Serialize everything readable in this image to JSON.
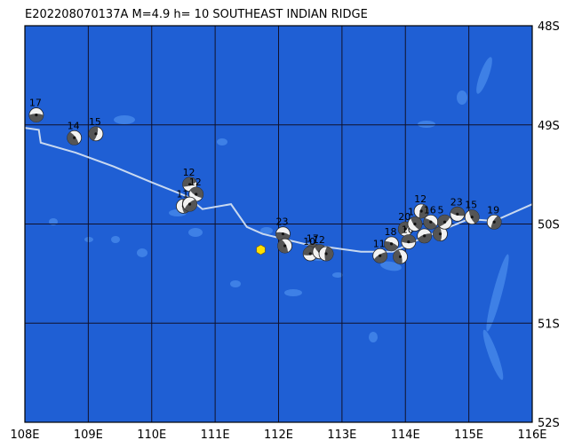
{
  "title": "E202208070137A  M=4.9  h= 10  SOUTHEAST INDIAN RIDGE",
  "colors": {
    "ocean": "#1f5fd4",
    "shallow": "#3e80e6",
    "ridge": "#c9d9f0",
    "grid": "#10102a",
    "epicenter": "#ffe000",
    "beachball_dark": "#555555",
    "beachball_light": "#f2f2f2"
  },
  "axes": {
    "lon_range": [
      108,
      116
    ],
    "lat_range": [
      -52,
      -48
    ],
    "lon_ticks": [
      "108E",
      "109E",
      "110E",
      "111E",
      "112E",
      "113E",
      "114E",
      "115E",
      "116E"
    ],
    "lat_ticks": [
      "48S",
      "49S",
      "50S",
      "51S",
      "52S"
    ]
  },
  "epicenter": {
    "lon": 111.72,
    "lat": -50.26,
    "icon": "hexagon-icon"
  },
  "events": [
    {
      "lon": 108.18,
      "lat": -48.9,
      "depth": "17"
    },
    {
      "lon": 108.78,
      "lat": -49.13,
      "depth": "14"
    },
    {
      "lon": 109.12,
      "lat": -49.09,
      "depth": "15"
    },
    {
      "lon": 110.6,
      "lat": -49.6,
      "depth": "12"
    },
    {
      "lon": 110.7,
      "lat": -49.7,
      "depth": "12"
    },
    {
      "lon": 110.5,
      "lat": -49.82,
      "depth": "11"
    },
    {
      "lon": 110.6,
      "lat": -49.8,
      "depth": ""
    },
    {
      "lon": 112.07,
      "lat": -50.1,
      "depth": "23"
    },
    {
      "lon": 112.1,
      "lat": -50.22,
      "depth": ""
    },
    {
      "lon": 112.55,
      "lat": -50.27,
      "depth": "17"
    },
    {
      "lon": 112.5,
      "lat": -50.3,
      "depth": "10"
    },
    {
      "lon": 112.65,
      "lat": -50.28,
      "depth": "12"
    },
    {
      "lon": 112.75,
      "lat": -50.3,
      "depth": ""
    },
    {
      "lon": 113.6,
      "lat": -50.32,
      "depth": "11"
    },
    {
      "lon": 113.78,
      "lat": -50.2,
      "depth": "18"
    },
    {
      "lon": 113.92,
      "lat": -50.33,
      "depth": ""
    },
    {
      "lon": 114.0,
      "lat": -50.05,
      "depth": "20"
    },
    {
      "lon": 114.05,
      "lat": -50.18,
      "depth": "10"
    },
    {
      "lon": 114.15,
      "lat": -50.0,
      "depth": "15"
    },
    {
      "lon": 114.25,
      "lat": -49.87,
      "depth": "12"
    },
    {
      "lon": 114.3,
      "lat": -50.12,
      "depth": ""
    },
    {
      "lon": 114.4,
      "lat": -49.98,
      "depth": "16"
    },
    {
      "lon": 114.55,
      "lat": -50.1,
      "depth": ""
    },
    {
      "lon": 114.62,
      "lat": -49.98,
      "depth": "5"
    },
    {
      "lon": 114.82,
      "lat": -49.9,
      "depth": "23"
    },
    {
      "lon": 115.05,
      "lat": -49.93,
      "depth": "15"
    },
    {
      "lon": 115.4,
      "lat": -49.98,
      "depth": "19"
    }
  ],
  "ridge": [
    [
      108.0,
      -49.03
    ],
    [
      108.22,
      -49.05
    ],
    [
      108.25,
      -49.18
    ],
    [
      108.8,
      -49.28
    ],
    [
      109.4,
      -49.42
    ],
    [
      110.0,
      -49.58
    ],
    [
      110.55,
      -49.72
    ],
    [
      110.8,
      -49.85
    ],
    [
      111.25,
      -49.8
    ],
    [
      111.5,
      -50.03
    ],
    [
      111.75,
      -50.1
    ],
    [
      112.4,
      -50.2
    ],
    [
      113.3,
      -50.28
    ],
    [
      113.8,
      -50.28
    ],
    [
      114.2,
      -50.16
    ],
    [
      115.0,
      -49.95
    ],
    [
      115.4,
      -49.97
    ],
    [
      116.0,
      -49.8
    ]
  ]
}
